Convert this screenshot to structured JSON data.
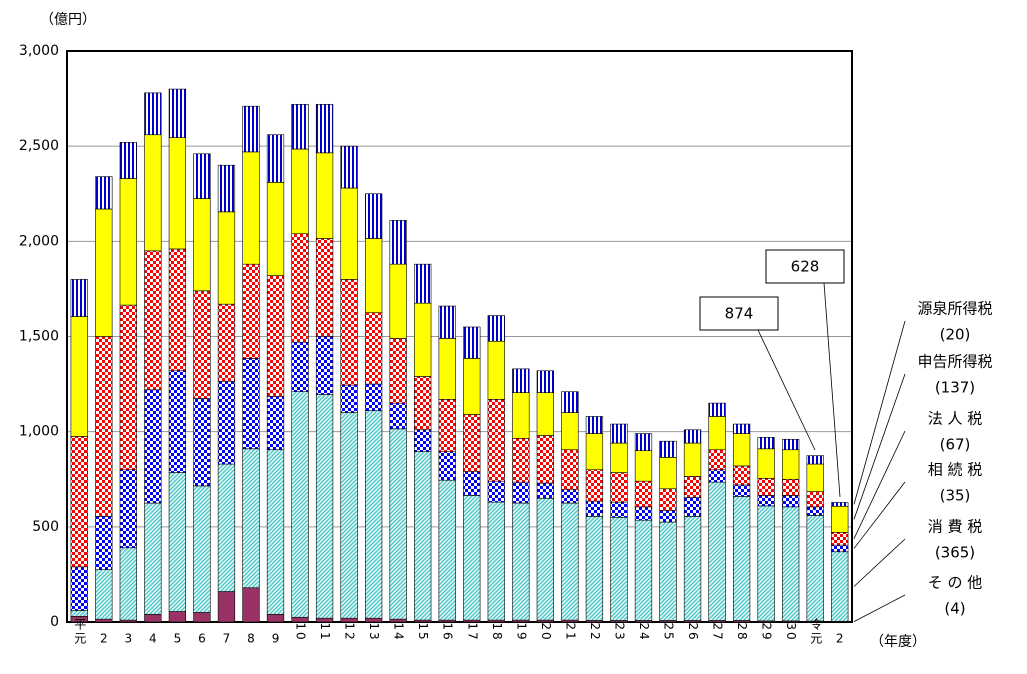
{
  "chart_data": {
    "type": "bar",
    "stacked": true,
    "y_label": "（億円）",
    "x_label": "（年度）",
    "categories": [
      "平元",
      "2",
      "3",
      "4",
      "5",
      "6",
      "7",
      "8",
      "9",
      "10",
      "11",
      "12",
      "13",
      "14",
      "15",
      "16",
      "17",
      "18",
      "19",
      "20",
      "21",
      "22",
      "23",
      "24",
      "25",
      "26",
      "27",
      "28",
      "29",
      "30",
      "令元",
      "2"
    ],
    "ylim": [
      0,
      3000
    ],
    "yticks": [
      0,
      500,
      {
        "value": 1000,
        "label": "1,000"
      },
      {
        "value": 1500,
        "label": "1,500"
      },
      {
        "value": 2000,
        "label": "2,000"
      },
      {
        "value": 2500,
        "label": "2,500"
      },
      {
        "value": 3000,
        "label": "3,000"
      }
    ],
    "grid": true,
    "annotations": [
      "874",
      "628"
    ],
    "series": [
      {
        "name": "そ の 他",
        "color": "#993366",
        "pattern": "solid",
        "values": [
          30,
          15,
          10,
          40,
          55,
          50,
          160,
          180,
          40,
          25,
          20,
          20,
          20,
          15,
          10,
          10,
          10,
          10,
          10,
          10,
          10,
          8,
          8,
          8,
          8,
          8,
          8,
          8,
          6,
          6,
          5,
          4
        ],
        "value_labels": [
          null,
          null,
          null,
          null,
          null,
          null,
          null,
          null,
          null,
          null,
          null,
          null,
          null,
          null,
          null,
          null,
          null,
          null,
          null,
          null,
          null,
          null,
          null,
          null,
          null,
          null,
          null,
          null,
          null,
          null,
          null,
          "(4)"
        ]
      },
      {
        "name": "消 費 税",
        "color": "#55cccc",
        "pattern": "diagonal",
        "values": [
          30,
          260,
          380,
          585,
          730,
          665,
          670,
          730,
          865,
          1185,
          1175,
          1080,
          1090,
          1000,
          885,
          735,
          655,
          620,
          615,
          640,
          615,
          547,
          542,
          527,
          517,
          547,
          727,
          652,
          604,
          599,
          555,
          365
        ],
        "value_labels": [
          null,
          null,
          null,
          null,
          null,
          null,
          null,
          null,
          null,
          null,
          null,
          null,
          null,
          null,
          null,
          null,
          null,
          null,
          null,
          null,
          null,
          null,
          null,
          null,
          null,
          null,
          null,
          null,
          null,
          null,
          null,
          "(365)"
        ]
      },
      {
        "name": "相 続 税",
        "color": "#0000ff",
        "pattern": "checker",
        "values": [
          230,
          280,
          410,
          595,
          535,
          460,
          435,
          475,
          280,
          260,
          305,
          145,
          140,
          135,
          115,
          150,
          125,
          110,
          110,
          80,
          70,
          80,
          80,
          70,
          60,
          100,
          65,
          60,
          55,
          60,
          45,
          35
        ],
        "value_labels": [
          null,
          null,
          null,
          null,
          null,
          null,
          null,
          null,
          null,
          null,
          null,
          null,
          null,
          null,
          null,
          null,
          null,
          null,
          null,
          null,
          null,
          null,
          null,
          null,
          null,
          null,
          null,
          null,
          null,
          null,
          null,
          "(35)"
        ]
      },
      {
        "name": "法 人 税",
        "color": "#ff0000",
        "pattern": "checker",
        "values": [
          685,
          945,
          865,
          730,
          640,
          565,
          405,
          495,
          635,
          570,
          515,
          555,
          375,
          340,
          280,
          275,
          300,
          430,
          230,
          250,
          210,
          165,
          155,
          135,
          115,
          110,
          105,
          100,
          90,
          85,
          80,
          67
        ],
        "value_labels": [
          null,
          null,
          null,
          null,
          null,
          null,
          null,
          null,
          null,
          null,
          null,
          null,
          null,
          null,
          null,
          null,
          null,
          null,
          null,
          null,
          null,
          null,
          null,
          null,
          null,
          null,
          null,
          null,
          null,
          null,
          null,
          "(67)"
        ]
      },
      {
        "name": "申告所得税",
        "color": "#ffff00",
        "pattern": "solid",
        "values": [
          630,
          670,
          665,
          610,
          585,
          485,
          485,
          590,
          490,
          445,
          450,
          480,
          390,
          390,
          385,
          320,
          295,
          305,
          240,
          225,
          195,
          190,
          155,
          160,
          165,
          175,
          175,
          170,
          155,
          155,
          145,
          137
        ],
        "value_labels": [
          null,
          null,
          null,
          null,
          null,
          null,
          null,
          null,
          null,
          null,
          null,
          null,
          null,
          null,
          null,
          null,
          null,
          null,
          null,
          null,
          null,
          null,
          null,
          null,
          null,
          null,
          null,
          null,
          null,
          null,
          null,
          "(137)"
        ]
      },
      {
        "name": "源泉所得税",
        "color": "#0000cc",
        "pattern": "vertical",
        "values": [
          195,
          170,
          190,
          220,
          255,
          235,
          245,
          240,
          250,
          235,
          255,
          220,
          235,
          230,
          205,
          170,
          165,
          135,
          125,
          115,
          110,
          90,
          100,
          90,
          85,
          70,
          70,
          50,
          60,
          55,
          44,
          20
        ],
        "value_labels": [
          null,
          null,
          null,
          null,
          null,
          null,
          null,
          null,
          null,
          null,
          null,
          null,
          null,
          null,
          null,
          null,
          null,
          null,
          null,
          null,
          null,
          null,
          null,
          null,
          null,
          null,
          null,
          null,
          null,
          null,
          null,
          "(20)"
        ]
      }
    ]
  }
}
